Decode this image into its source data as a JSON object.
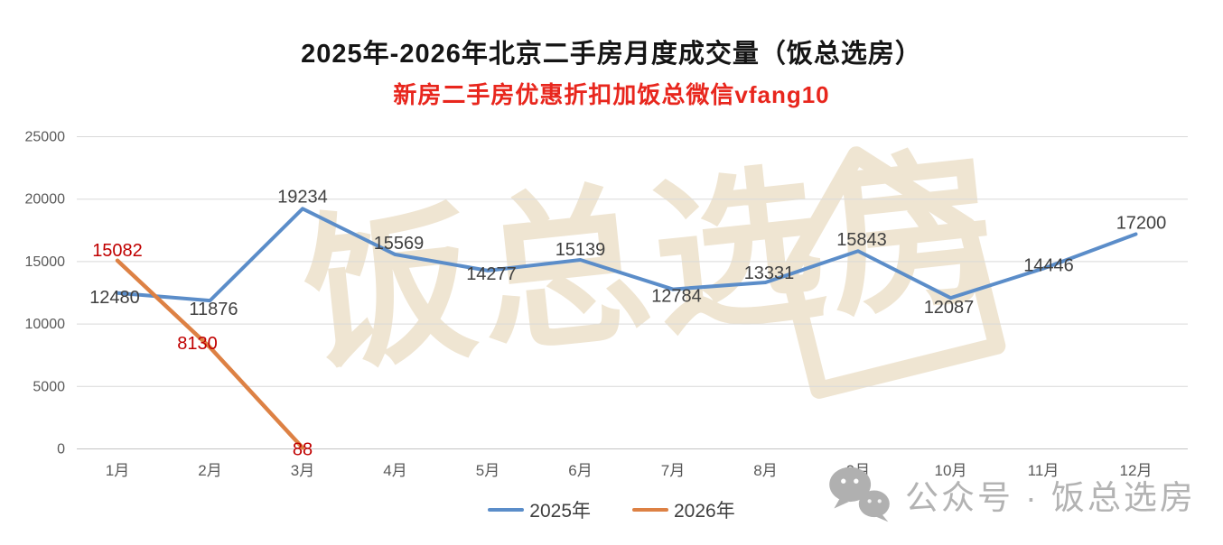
{
  "header": {
    "title": "2025年-2026年北京二手房月度成交量（饭总选房）",
    "subtitle": "新房二手房优惠折扣加饭总微信vfang10",
    "subtitle_color": "#e8261d"
  },
  "chart_data": {
    "type": "line",
    "title": "2025年-2026年北京二手房月度成交量（饭总选房）",
    "subtitle": "新房二手房优惠折扣加饭总微信vfang10",
    "categories": [
      "1月",
      "2月",
      "3月",
      "4月",
      "5月",
      "6月",
      "7月",
      "8月",
      "9月",
      "10月",
      "11月",
      "12月"
    ],
    "series": [
      {
        "name": "2025年",
        "color": "#5b8dc9",
        "label_color": "#404040",
        "values": [
          12480,
          11876,
          19234,
          15569,
          14277,
          15139,
          12784,
          13331,
          15843,
          12087,
          14446,
          17200
        ]
      },
      {
        "name": "2026年",
        "color": "#dd8144",
        "label_color": "#c00000",
        "values": [
          15082,
          8130,
          88
        ]
      }
    ],
    "xlabel": "",
    "ylabel": "",
    "ylim": [
      0,
      25000
    ],
    "yticks": [
      0,
      5000,
      10000,
      15000,
      20000,
      25000
    ],
    "grid": true,
    "legend_position": "bottom"
  },
  "legend": {
    "items": [
      {
        "label": "2025年",
        "color": "#5b8dc9"
      },
      {
        "label": "2026年",
        "color": "#dd8144"
      }
    ]
  },
  "watermark": {
    "center_text": "饭总选房",
    "wechat_text": "公众号 · 饭总选房"
  },
  "colors": {
    "grid": "#d9d9d9",
    "axis": "#c3c3c3",
    "tick": "#595959",
    "watermark": "#efe5d2",
    "wechat": "#b3b3b3"
  }
}
